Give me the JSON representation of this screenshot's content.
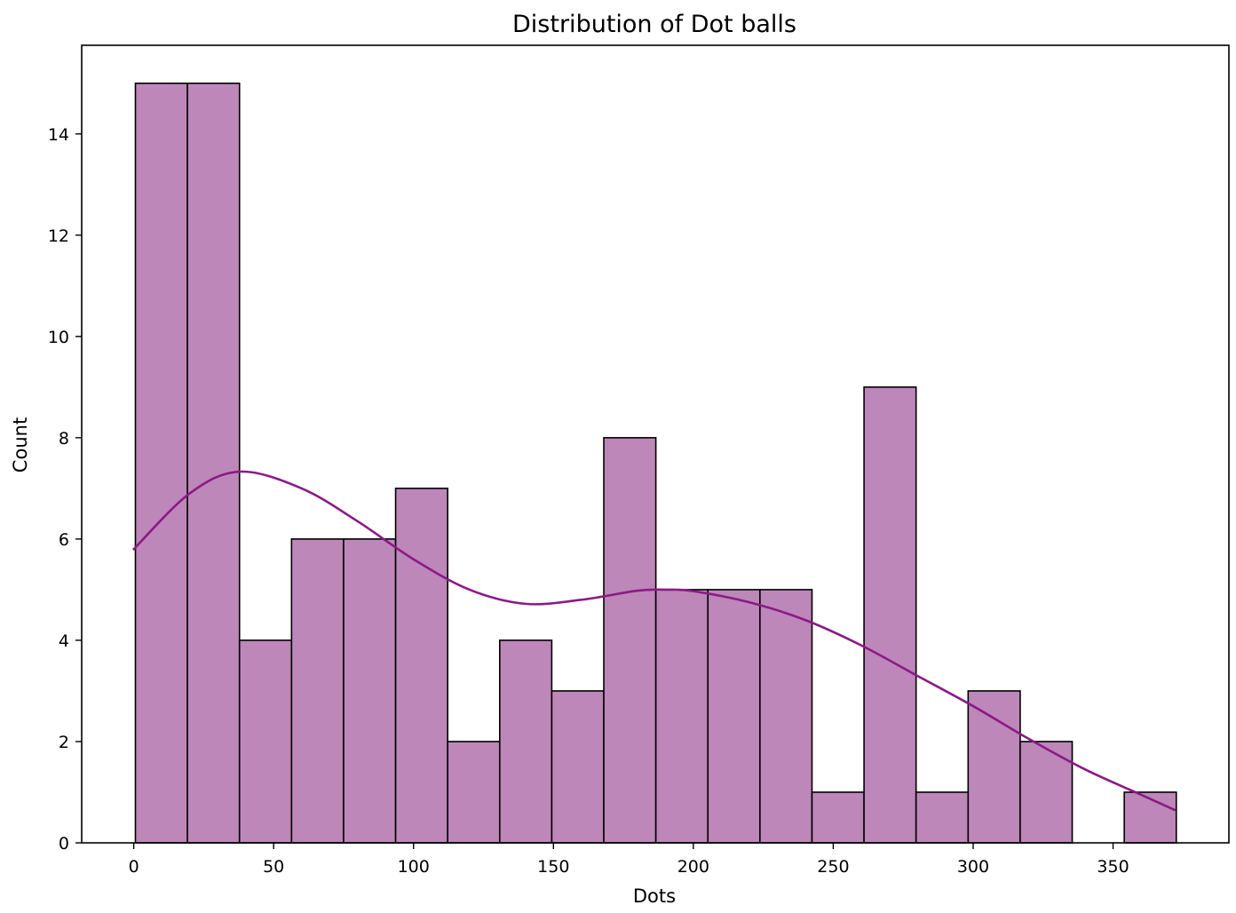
{
  "chart_data": {
    "type": "bar",
    "subtype": "histogram-with-kde",
    "title": "Distribution of Dot balls",
    "xlabel": "Dots",
    "ylabel": "Count",
    "xlim": [
      -18.6,
      391.4
    ],
    "ylim": [
      0,
      15.75
    ],
    "xticks": [
      0,
      50,
      100,
      150,
      200,
      250,
      300,
      350
    ],
    "yticks": [
      0,
      2,
      4,
      6,
      8,
      10,
      12,
      14
    ],
    "xtick_labels": [
      "0",
      "50",
      "100",
      "150",
      "200",
      "250",
      "300",
      "350"
    ],
    "ytick_labels": [
      "0",
      "2",
      "4",
      "6",
      "8",
      "10",
      "12",
      "14"
    ],
    "bin_edges": [
      0.6,
      19.2,
      37.8,
      56.4,
      75.0,
      93.6,
      112.2,
      130.8,
      149.4,
      168.0,
      186.6,
      205.2,
      223.8,
      242.4,
      261.0,
      279.6,
      298.2,
      316.8,
      335.4,
      354.0,
      372.6
    ],
    "counts": [
      15,
      15,
      4,
      6,
      6,
      7,
      2,
      4,
      3,
      8,
      5,
      5,
      5,
      1,
      9,
      1,
      3,
      2,
      0,
      1
    ],
    "kde": {
      "x": [
        0,
        20,
        38,
        60,
        80,
        100,
        120,
        140,
        160,
        180,
        190,
        200,
        220,
        240,
        260,
        280,
        300,
        320,
        340,
        360,
        372
      ],
      "y": [
        5.8,
        6.9,
        7.33,
        7.0,
        6.35,
        5.6,
        5.0,
        4.72,
        4.8,
        4.98,
        5.0,
        4.97,
        4.75,
        4.4,
        3.9,
        3.3,
        2.7,
        2.05,
        1.45,
        0.95,
        0.65
      ]
    },
    "colors": {
      "bar_fill": "#bd87b9",
      "bar_edge": "#000000",
      "kde_line": "#8b1a86",
      "axes": "#000000",
      "background": "#ffffff"
    },
    "grid": false,
    "legend": "none"
  }
}
